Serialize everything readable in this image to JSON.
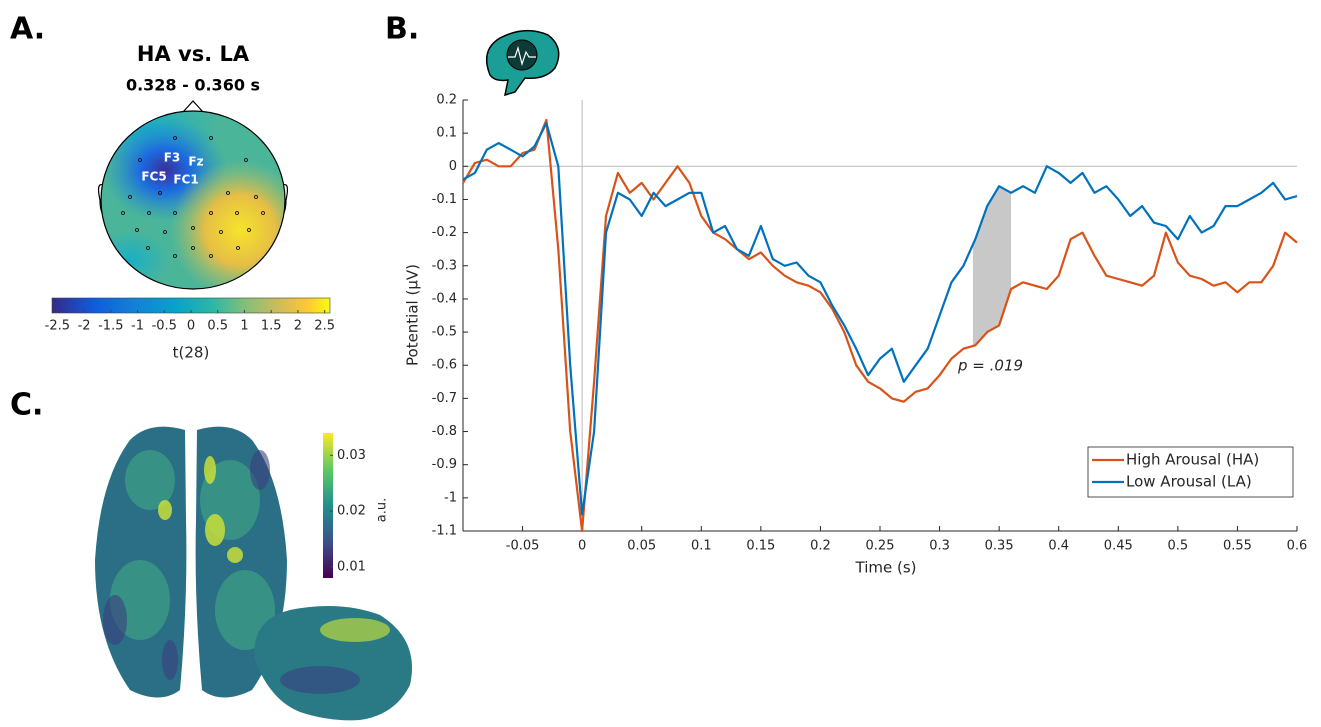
{
  "chart_data": [
    {
      "type": "topomap",
      "panel": "A.",
      "title": "HA vs. LA",
      "subtitle": "0.328 - 0.360 s",
      "electrode_labels": [
        "F3",
        "Fz",
        "FC5",
        "FC1"
      ],
      "clim": [
        -2.6,
        2.6
      ],
      "cticks": [
        -2.5,
        -2,
        -1.5,
        -1,
        -0.5,
        0,
        0.5,
        1,
        1.5,
        2,
        2.5
      ],
      "colorbar_label": "t(28)"
    },
    {
      "type": "line",
      "panel": "B.",
      "xlabel": "Time (s)",
      "ylabel": "Potential (μV)",
      "x": [
        -0.1,
        -0.09,
        -0.08,
        -0.07,
        -0.06,
        -0.05,
        -0.04,
        -0.03,
        -0.02,
        -0.01,
        0,
        0.01,
        0.02,
        0.03,
        0.04,
        0.05,
        0.06,
        0.07,
        0.08,
        0.09,
        0.1,
        0.11,
        0.12,
        0.13,
        0.14,
        0.15,
        0.16,
        0.17,
        0.18,
        0.19,
        0.2,
        0.21,
        0.22,
        0.23,
        0.24,
        0.25,
        0.26,
        0.27,
        0.28,
        0.29,
        0.3,
        0.31,
        0.32,
        0.33,
        0.34,
        0.35,
        0.36,
        0.37,
        0.38,
        0.39,
        0.4,
        0.41,
        0.42,
        0.43,
        0.44,
        0.45,
        0.46,
        0.47,
        0.48,
        0.49,
        0.5,
        0.51,
        0.52,
        0.53,
        0.54,
        0.55,
        0.56,
        0.57,
        0.58,
        0.59,
        0.6
      ],
      "series": [
        {
          "name": "High Arousal (HA)",
          "color": "#d95319",
          "values": [
            -0.05,
            0.01,
            0.02,
            0,
            0,
            0.04,
            0.05,
            0.14,
            -0.25,
            -0.8,
            -1.1,
            -0.65,
            -0.15,
            -0.02,
            -0.08,
            -0.05,
            -0.1,
            -0.05,
            0,
            -0.05,
            -0.15,
            -0.2,
            -0.22,
            -0.25,
            -0.28,
            -0.26,
            -0.3,
            -0.33,
            -0.35,
            -0.36,
            -0.38,
            -0.43,
            -0.5,
            -0.6,
            -0.65,
            -0.67,
            -0.7,
            -0.71,
            -0.68,
            -0.67,
            -0.63,
            -0.58,
            -0.55,
            -0.54,
            -0.5,
            -0.48,
            -0.37,
            -0.35,
            -0.36,
            -0.37,
            -0.33,
            -0.22,
            -0.2,
            -0.27,
            -0.33,
            -0.34,
            -0.35,
            -0.36,
            -0.33,
            -0.2,
            -0.29,
            -0.33,
            -0.34,
            -0.36,
            -0.35,
            -0.38,
            -0.35,
            -0.35,
            -0.3,
            -0.2,
            -0.23
          ]
        },
        {
          "name": "Low Arousal (LA)",
          "color": "#0072bd",
          "values": [
            -0.04,
            -0.02,
            0.05,
            0.07,
            0.05,
            0.03,
            0.06,
            0.13,
            0,
            -0.6,
            -1.05,
            -0.8,
            -0.2,
            -0.08,
            -0.1,
            -0.15,
            -0.08,
            -0.12,
            -0.1,
            -0.08,
            -0.08,
            -0.2,
            -0.18,
            -0.25,
            -0.27,
            -0.18,
            -0.28,
            -0.3,
            -0.29,
            -0.33,
            -0.35,
            -0.42,
            -0.48,
            -0.55,
            -0.63,
            -0.58,
            -0.55,
            -0.65,
            -0.6,
            -0.55,
            -0.45,
            -0.35,
            -0.3,
            -0.22,
            -0.12,
            -0.06,
            -0.08,
            -0.06,
            -0.08,
            0,
            -0.02,
            -0.05,
            -0.02,
            -0.08,
            -0.06,
            -0.1,
            -0.15,
            -0.12,
            -0.17,
            -0.18,
            -0.22,
            -0.15,
            -0.2,
            -0.18,
            -0.12,
            -0.12,
            -0.1,
            -0.08,
            -0.05,
            -0.1,
            -0.09
          ]
        }
      ],
      "xlim": [
        -0.1,
        0.6
      ],
      "ylim": [
        -1.1,
        0.2
      ],
      "xticks": [
        -0.05,
        0,
        0.05,
        0.1,
        0.15,
        0.2,
        0.25,
        0.3,
        0.35,
        0.4,
        0.45,
        0.5,
        0.55,
        0.6
      ],
      "yticks": [
        -1.1,
        -1,
        -0.9,
        -0.8,
        -0.7,
        -0.6,
        -0.5,
        -0.4,
        -0.3,
        -0.2,
        -0.1,
        0,
        0.1,
        0.2
      ],
      "highlight": [
        0.328,
        0.36
      ],
      "annotation": "p = .019",
      "legend": "lower right",
      "zero_lines": true
    },
    {
      "type": "surface",
      "panel": "C.",
      "clim": [
        0.008,
        0.034
      ],
      "cticks": [
        0.01,
        0.02,
        0.03
      ],
      "colorbar_label": "a.u."
    }
  ]
}
